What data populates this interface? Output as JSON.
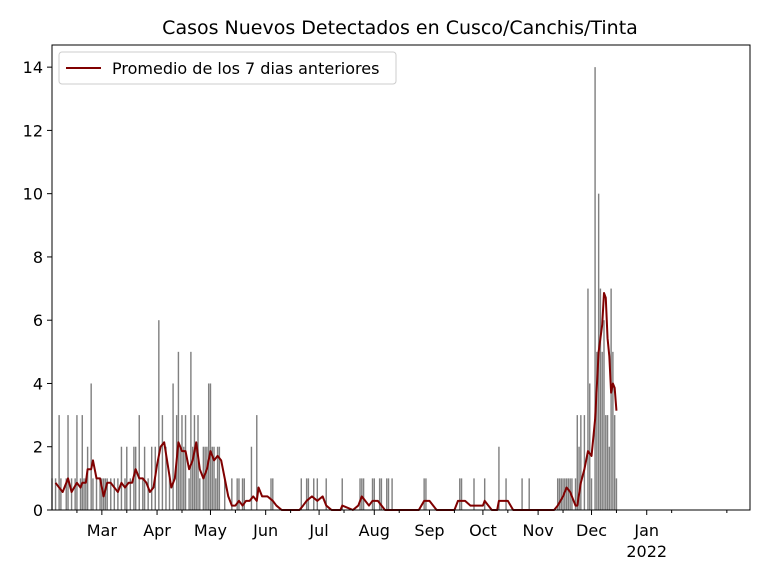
{
  "chart_data": {
    "type": "bar",
    "title": "Casos Nuevos Detectados en Cusco/Canchis/Tinta",
    "xlabel": "",
    "ylabel": "",
    "ylim": [
      0,
      14.7
    ],
    "xlim": [
      "2021-02-01",
      "2022-02-28"
    ],
    "yticks": [
      0,
      2,
      4,
      6,
      8,
      10,
      12,
      14
    ],
    "xticks": [
      {
        "date": "2021-03-01",
        "label": "Mar"
      },
      {
        "date": "2021-04-01",
        "label": "Apr"
      },
      {
        "date": "2021-05-01",
        "label": "May"
      },
      {
        "date": "2021-06-01",
        "label": "Jun"
      },
      {
        "date": "2021-07-01",
        "label": "Jul"
      },
      {
        "date": "2021-08-01",
        "label": "Aug"
      },
      {
        "date": "2021-09-01",
        "label": "Sep"
      },
      {
        "date": "2021-10-01",
        "label": "Oct"
      },
      {
        "date": "2021-11-01",
        "label": "Nov"
      },
      {
        "date": "2021-12-01",
        "label": "Dec"
      },
      {
        "date": "2022-01-01",
        "label": "Jan"
      }
    ],
    "xtick_year": {
      "date": "2022-01-01",
      "label": "2022"
    },
    "legend": {
      "position": "top-left",
      "entries": [
        {
          "label": "Promedio de los 7 dias anteriores",
          "color": "#800000"
        }
      ]
    },
    "colors": {
      "bars": "#808080",
      "line": "#800000"
    },
    "series": [
      {
        "type": "bar",
        "points": [
          [
            "2021-02-01",
            1
          ],
          [
            "2021-02-03",
            1
          ],
          [
            "2021-02-05",
            3
          ],
          [
            "2021-02-06",
            1
          ],
          [
            "2021-02-09",
            1
          ],
          [
            "2021-02-10",
            3
          ],
          [
            "2021-02-12",
            1
          ],
          [
            "2021-02-14",
            1
          ],
          [
            "2021-02-15",
            3
          ],
          [
            "2021-02-17",
            1
          ],
          [
            "2021-02-18",
            3
          ],
          [
            "2021-02-19",
            1
          ],
          [
            "2021-02-20",
            1
          ],
          [
            "2021-02-21",
            2
          ],
          [
            "2021-02-23",
            4
          ],
          [
            "2021-02-24",
            1
          ],
          [
            "2021-02-26",
            1
          ],
          [
            "2021-02-28",
            1
          ],
          [
            "2021-03-01",
            1
          ],
          [
            "2021-03-02",
            1
          ],
          [
            "2021-03-03",
            1
          ],
          [
            "2021-03-04",
            1
          ],
          [
            "2021-03-06",
            1
          ],
          [
            "2021-03-08",
            1
          ],
          [
            "2021-03-10",
            1
          ],
          [
            "2021-03-12",
            2
          ],
          [
            "2021-03-14",
            1
          ],
          [
            "2021-03-15",
            2
          ],
          [
            "2021-03-17",
            1
          ],
          [
            "2021-03-19",
            2
          ],
          [
            "2021-03-20",
            2
          ],
          [
            "2021-03-22",
            3
          ],
          [
            "2021-03-24",
            1
          ],
          [
            "2021-03-25",
            2
          ],
          [
            "2021-03-27",
            1
          ],
          [
            "2021-03-29",
            2
          ],
          [
            "2021-03-31",
            2
          ],
          [
            "2021-04-02",
            6
          ],
          [
            "2021-04-04",
            3
          ],
          [
            "2021-04-06",
            2
          ],
          [
            "2021-04-08",
            1
          ],
          [
            "2021-04-10",
            4
          ],
          [
            "2021-04-12",
            3
          ],
          [
            "2021-04-13",
            5
          ],
          [
            "2021-04-14",
            2
          ],
          [
            "2021-04-15",
            3
          ],
          [
            "2021-04-16",
            2
          ],
          [
            "2021-04-17",
            3
          ],
          [
            "2021-04-19",
            1
          ],
          [
            "2021-04-20",
            5
          ],
          [
            "2021-04-21",
            2
          ],
          [
            "2021-04-22",
            3
          ],
          [
            "2021-04-23",
            2
          ],
          [
            "2021-04-24",
            3
          ],
          [
            "2021-04-25",
            1
          ],
          [
            "2021-04-27",
            2
          ],
          [
            "2021-04-28",
            2
          ],
          [
            "2021-04-29",
            2
          ],
          [
            "2021-04-30",
            4
          ],
          [
            "2021-05-01",
            4
          ],
          [
            "2021-05-02",
            2
          ],
          [
            "2021-05-03",
            2
          ],
          [
            "2021-05-04",
            1
          ],
          [
            "2021-05-05",
            2
          ],
          [
            "2021-05-06",
            2
          ],
          [
            "2021-05-09",
            1
          ],
          [
            "2021-05-13",
            1
          ],
          [
            "2021-05-16",
            1
          ],
          [
            "2021-05-17",
            1
          ],
          [
            "2021-05-19",
            1
          ],
          [
            "2021-05-20",
            1
          ],
          [
            "2021-05-24",
            2
          ],
          [
            "2021-05-27",
            3
          ],
          [
            "2021-06-04",
            1
          ],
          [
            "2021-06-05",
            1
          ],
          [
            "2021-06-21",
            1
          ],
          [
            "2021-06-24",
            1
          ],
          [
            "2021-06-25",
            1
          ],
          [
            "2021-06-28",
            1
          ],
          [
            "2021-06-30",
            1
          ],
          [
            "2021-07-05",
            1
          ],
          [
            "2021-07-14",
            1
          ],
          [
            "2021-07-24",
            1
          ],
          [
            "2021-07-25",
            1
          ],
          [
            "2021-07-26",
            1
          ],
          [
            "2021-07-31",
            1
          ],
          [
            "2021-08-01",
            1
          ],
          [
            "2021-08-04",
            1
          ],
          [
            "2021-08-05",
            1
          ],
          [
            "2021-08-08",
            1
          ],
          [
            "2021-08-09",
            1
          ],
          [
            "2021-08-11",
            1
          ],
          [
            "2021-08-29",
            1
          ],
          [
            "2021-08-30",
            1
          ],
          [
            "2021-09-18",
            1
          ],
          [
            "2021-09-19",
            1
          ],
          [
            "2021-09-26",
            1
          ],
          [
            "2021-10-02",
            1
          ],
          [
            "2021-10-10",
            2
          ],
          [
            "2021-10-14",
            1
          ],
          [
            "2021-10-23",
            1
          ],
          [
            "2021-10-27",
            1
          ],
          [
            "2021-11-12",
            1
          ],
          [
            "2021-11-13",
            1
          ],
          [
            "2021-11-14",
            1
          ],
          [
            "2021-11-15",
            1
          ],
          [
            "2021-11-16",
            1
          ],
          [
            "2021-11-17",
            1
          ],
          [
            "2021-11-18",
            1
          ],
          [
            "2021-11-19",
            1
          ],
          [
            "2021-11-20",
            1
          ],
          [
            "2021-11-22",
            1
          ],
          [
            "2021-11-23",
            3
          ],
          [
            "2021-11-24",
            2
          ],
          [
            "2021-11-25",
            3
          ],
          [
            "2021-11-27",
            3
          ],
          [
            "2021-11-29",
            7
          ],
          [
            "2021-11-30",
            4
          ],
          [
            "2021-12-01",
            1
          ],
          [
            "2021-12-03",
            14
          ],
          [
            "2021-12-04",
            5
          ],
          [
            "2021-12-05",
            10
          ],
          [
            "2021-12-06",
            7
          ],
          [
            "2021-12-07",
            5
          ],
          [
            "2021-12-08",
            6
          ],
          [
            "2021-12-09",
            3
          ],
          [
            "2021-12-10",
            3
          ],
          [
            "2021-12-11",
            2
          ],
          [
            "2021-12-12",
            7
          ],
          [
            "2021-12-13",
            5
          ],
          [
            "2021-12-14",
            3
          ],
          [
            "2021-12-15",
            1
          ]
        ]
      },
      {
        "type": "line",
        "name": "Promedio de los 7 dias anteriores",
        "points": [
          [
            "2021-02-03",
            0.86
          ],
          [
            "2021-02-05",
            0.71
          ],
          [
            "2021-02-07",
            0.57
          ],
          [
            "2021-02-10",
            1.0
          ],
          [
            "2021-02-12",
            0.57
          ],
          [
            "2021-02-15",
            0.86
          ],
          [
            "2021-02-17",
            0.71
          ],
          [
            "2021-02-18",
            0.86
          ],
          [
            "2021-02-20",
            0.86
          ],
          [
            "2021-02-21",
            1.29
          ],
          [
            "2021-02-23",
            1.29
          ],
          [
            "2021-02-24",
            1.57
          ],
          [
            "2021-02-26",
            1.0
          ],
          [
            "2021-02-28",
            1.0
          ],
          [
            "2021-03-02",
            0.43
          ],
          [
            "2021-03-04",
            0.86
          ],
          [
            "2021-03-06",
            0.86
          ],
          [
            "2021-03-08",
            0.71
          ],
          [
            "2021-03-10",
            0.57
          ],
          [
            "2021-03-12",
            0.86
          ],
          [
            "2021-03-14",
            0.71
          ],
          [
            "2021-03-16",
            0.86
          ],
          [
            "2021-03-18",
            0.86
          ],
          [
            "2021-03-20",
            1.29
          ],
          [
            "2021-03-22",
            1.0
          ],
          [
            "2021-03-24",
            1.0
          ],
          [
            "2021-03-26",
            0.86
          ],
          [
            "2021-03-28",
            0.57
          ],
          [
            "2021-03-30",
            0.71
          ],
          [
            "2021-04-01",
            1.43
          ],
          [
            "2021-04-03",
            2.0
          ],
          [
            "2021-04-05",
            2.14
          ],
          [
            "2021-04-07",
            1.43
          ],
          [
            "2021-04-09",
            0.71
          ],
          [
            "2021-04-11",
            1.0
          ],
          [
            "2021-04-13",
            2.14
          ],
          [
            "2021-04-15",
            1.86
          ],
          [
            "2021-04-17",
            1.86
          ],
          [
            "2021-04-19",
            1.29
          ],
          [
            "2021-04-21",
            1.57
          ],
          [
            "2021-04-23",
            2.14
          ],
          [
            "2021-04-25",
            1.29
          ],
          [
            "2021-04-27",
            1.0
          ],
          [
            "2021-04-29",
            1.29
          ],
          [
            "2021-05-01",
            1.86
          ],
          [
            "2021-05-03",
            1.57
          ],
          [
            "2021-05-05",
            1.71
          ],
          [
            "2021-05-07",
            1.57
          ],
          [
            "2021-05-09",
            1.0
          ],
          [
            "2021-05-11",
            0.43
          ],
          [
            "2021-05-13",
            0.14
          ],
          [
            "2021-05-15",
            0.14
          ],
          [
            "2021-05-17",
            0.29
          ],
          [
            "2021-05-19",
            0.14
          ],
          [
            "2021-05-21",
            0.29
          ],
          [
            "2021-05-23",
            0.29
          ],
          [
            "2021-05-25",
            0.43
          ],
          [
            "2021-05-27",
            0.29
          ],
          [
            "2021-05-28",
            0.71
          ],
          [
            "2021-05-30",
            0.43
          ],
          [
            "2021-06-02",
            0.43
          ],
          [
            "2021-06-05",
            0.29
          ],
          [
            "2021-06-07",
            0.14
          ],
          [
            "2021-06-10",
            0.0
          ],
          [
            "2021-06-20",
            0.0
          ],
          [
            "2021-06-22",
            0.14
          ],
          [
            "2021-06-24",
            0.29
          ],
          [
            "2021-06-27",
            0.43
          ],
          [
            "2021-06-30",
            0.29
          ],
          [
            "2021-07-03",
            0.43
          ],
          [
            "2021-07-05",
            0.14
          ],
          [
            "2021-07-08",
            0.0
          ],
          [
            "2021-07-13",
            0.0
          ],
          [
            "2021-07-14",
            0.14
          ],
          [
            "2021-07-20",
            0.0
          ],
          [
            "2021-07-23",
            0.14
          ],
          [
            "2021-07-25",
            0.43
          ],
          [
            "2021-07-29",
            0.14
          ],
          [
            "2021-07-31",
            0.29
          ],
          [
            "2021-08-03",
            0.29
          ],
          [
            "2021-08-07",
            0.0
          ],
          [
            "2021-08-26",
            0.0
          ],
          [
            "2021-08-29",
            0.29
          ],
          [
            "2021-09-01",
            0.29
          ],
          [
            "2021-09-05",
            0.0
          ],
          [
            "2021-09-15",
            0.0
          ],
          [
            "2021-09-17",
            0.29
          ],
          [
            "2021-09-21",
            0.29
          ],
          [
            "2021-09-24",
            0.14
          ],
          [
            "2021-09-26",
            0.14
          ],
          [
            "2021-10-01",
            0.14
          ],
          [
            "2021-10-02",
            0.29
          ],
          [
            "2021-10-06",
            0.0
          ],
          [
            "2021-10-09",
            0.0
          ],
          [
            "2021-10-10",
            0.29
          ],
          [
            "2021-10-15",
            0.29
          ],
          [
            "2021-10-18",
            0.0
          ],
          [
            "2021-10-25",
            0.0
          ],
          [
            "2021-10-29",
            0.0
          ],
          [
            "2021-11-10",
            0.0
          ],
          [
            "2021-11-12",
            0.14
          ],
          [
            "2021-11-15",
            0.43
          ],
          [
            "2021-11-17",
            0.71
          ],
          [
            "2021-11-19",
            0.57
          ],
          [
            "2021-11-22",
            0.14
          ],
          [
            "2021-11-23",
            0.14
          ],
          [
            "2021-11-25",
            0.86
          ],
          [
            "2021-11-27",
            1.29
          ],
          [
            "2021-11-29",
            1.86
          ],
          [
            "2021-12-01",
            1.71
          ],
          [
            "2021-12-03",
            2.86
          ],
          [
            "2021-12-05",
            5.0
          ],
          [
            "2021-12-07",
            5.86
          ],
          [
            "2021-12-08",
            6.86
          ],
          [
            "2021-12-09",
            6.71
          ],
          [
            "2021-12-10",
            5.43
          ],
          [
            "2021-12-11",
            4.86
          ],
          [
            "2021-12-12",
            3.71
          ],
          [
            "2021-12-13",
            4.0
          ],
          [
            "2021-12-14",
            3.86
          ],
          [
            "2021-12-15",
            3.14
          ]
        ]
      }
    ]
  }
}
